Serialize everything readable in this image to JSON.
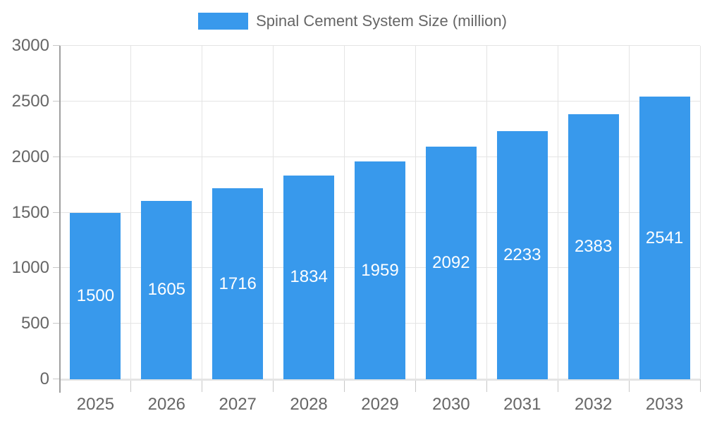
{
  "legend": {
    "label": "Spinal Cement System Size (million)"
  },
  "chart_data": {
    "type": "bar",
    "title": "",
    "categories": [
      "2025",
      "2026",
      "2027",
      "2028",
      "2029",
      "2030",
      "2031",
      "2032",
      "2033"
    ],
    "series": [
      {
        "name": "Spinal Cement System Size (million)",
        "values": [
          1500,
          1605,
          1716,
          1834,
          1959,
          2092,
          2233,
          2383,
          2541
        ],
        "color": "#3899EC"
      }
    ],
    "ylim": [
      0,
      3000
    ],
    "yticks": [
      3000,
      2500,
      2000,
      1500,
      1000,
      500,
      0
    ],
    "grid": true,
    "legend_position": "top",
    "bar_value_labels": {
      "visible": true,
      "color": "#ffffff",
      "position": "center-of-bar"
    },
    "colors": {
      "grid": "#e4e4e4",
      "axis_line": "#a0a0a0",
      "tick": "#c8c8c8",
      "tick_label": "#666666",
      "background": "#ffffff"
    }
  }
}
